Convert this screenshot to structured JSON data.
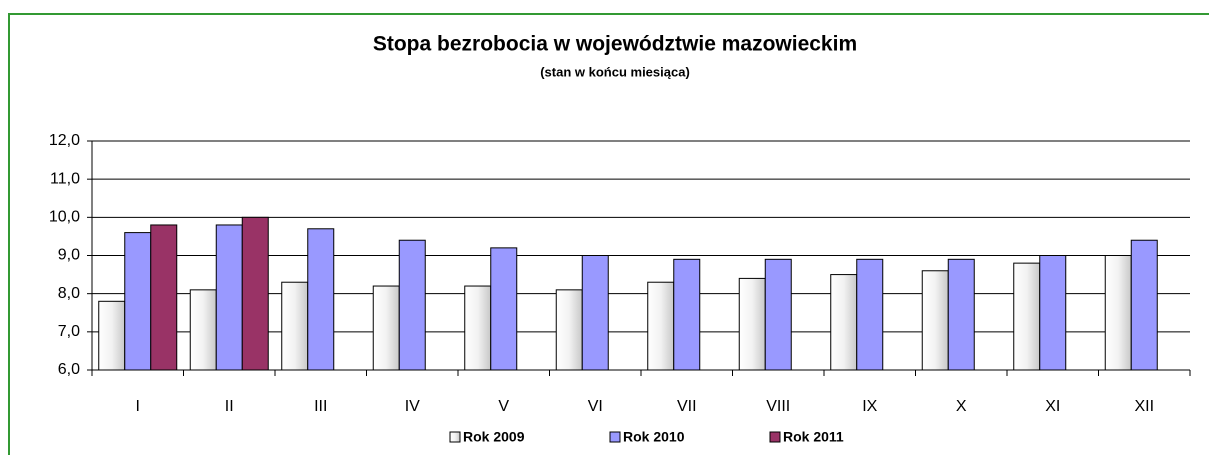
{
  "chart_data": {
    "type": "bar",
    "title": "Stopa bezrobocia w województwie mazowieckim",
    "subtitle": "(stan w końcu miesiąca)",
    "categories": [
      "I",
      "II",
      "III",
      "IV",
      "V",
      "VI",
      "VII",
      "VIII",
      "IX",
      "X",
      "XI",
      "XII"
    ],
    "series": [
      {
        "name": "Rok 2009",
        "color": "#f2f2f2",
        "values": [
          7.8,
          8.1,
          8.3,
          8.2,
          8.2,
          8.1,
          8.3,
          8.4,
          8.5,
          8.6,
          8.8,
          9.0
        ]
      },
      {
        "name": "Rok 2010",
        "color": "#9999ff",
        "values": [
          9.6,
          9.8,
          9.7,
          9.4,
          9.2,
          9.0,
          8.9,
          8.9,
          8.9,
          8.9,
          9.0,
          9.4
        ]
      },
      {
        "name": "Rok 2011",
        "color": "#993366",
        "values": [
          9.8,
          10.0,
          null,
          null,
          null,
          null,
          null,
          null,
          null,
          null,
          null,
          null
        ]
      }
    ],
    "ylim": [
      6,
      12
    ],
    "yticks": [
      {
        "value": 6,
        "label": "6,0"
      },
      {
        "value": 7,
        "label": "7,0"
      },
      {
        "value": 8,
        "label": "8,0"
      },
      {
        "value": 9,
        "label": "9,0"
      },
      {
        "value": 10,
        "label": "10,0"
      },
      {
        "value": 11,
        "label": "11,0"
      },
      {
        "value": 12,
        "label": "12,0"
      }
    ],
    "grid": true,
    "legend": "bottom"
  }
}
